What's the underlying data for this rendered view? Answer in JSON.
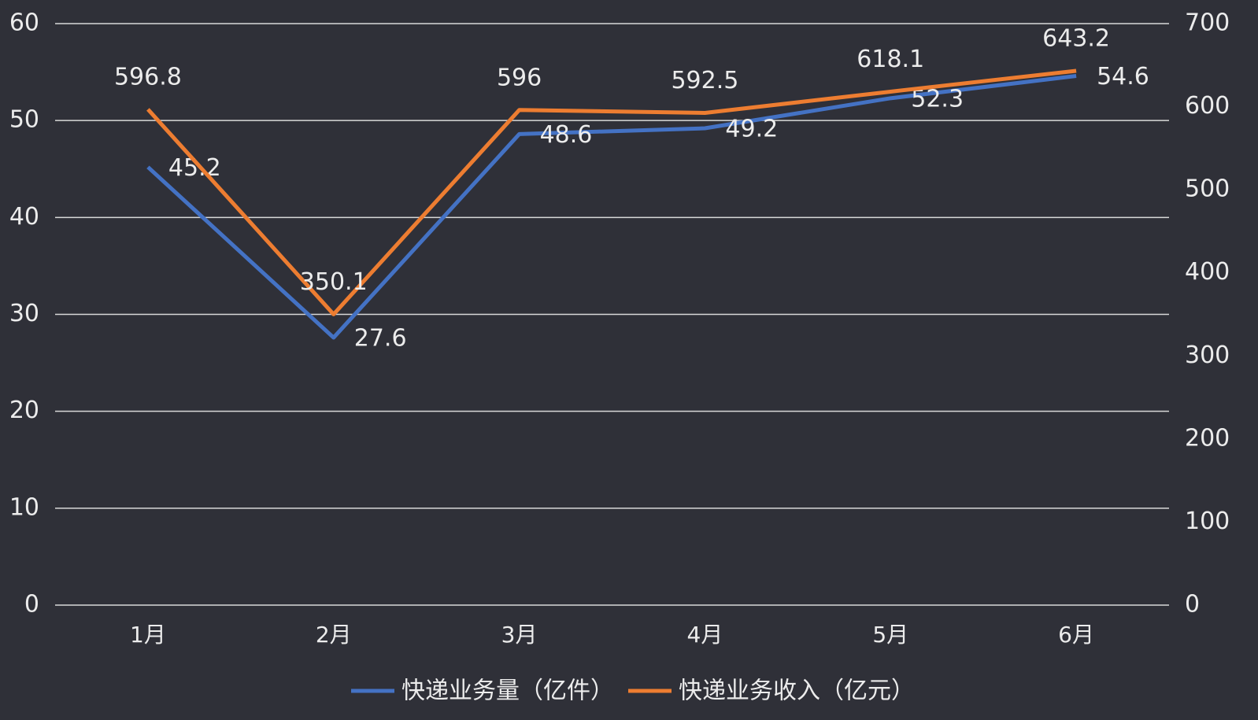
{
  "chart_data": {
    "type": "line",
    "categories": [
      "1月",
      "2月",
      "3月",
      "4月",
      "5月",
      "6月"
    ],
    "series": [
      {
        "name": "快递业务量（亿件）",
        "color": "#4472c4",
        "values": [
          45.2,
          27.6,
          48.6,
          49.2,
          52.3,
          54.6
        ]
      },
      {
        "name": "快递业务收入（亿元）",
        "color": "#ed7d31",
        "axis": "y2",
        "values": [
          596.8,
          350.1,
          596,
          592.5,
          618.1,
          643.2
        ]
      }
    ],
    "ylim": [
      0,
      60
    ],
    "yticks": [
      0,
      10,
      20,
      30,
      40,
      50,
      60
    ],
    "y2lim": [
      0,
      700
    ],
    "y2ticks": [
      0,
      100,
      200,
      300,
      400,
      500,
      600,
      700
    ],
    "grid": true,
    "legend": "bottom"
  }
}
